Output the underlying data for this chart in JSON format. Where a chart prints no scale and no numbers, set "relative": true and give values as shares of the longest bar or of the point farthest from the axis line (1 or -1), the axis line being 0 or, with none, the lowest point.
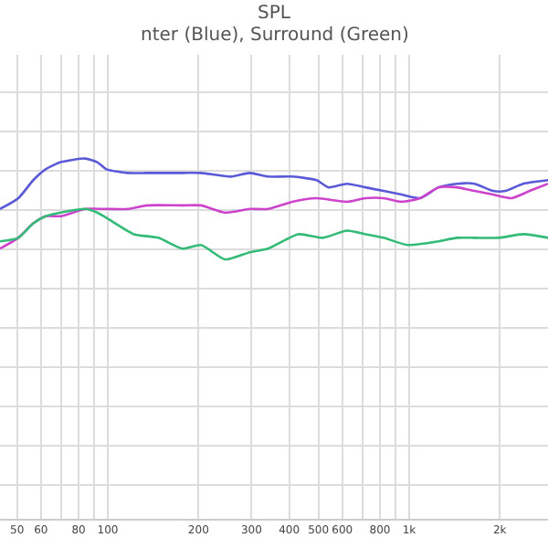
{
  "chart_data": {
    "type": "line",
    "title": "SPL",
    "subtitle": "nter (Blue), Surround (Green)",
    "relative": true,
    "log": "x",
    "grid": true,
    "marker": "none",
    "line_style": "solid",
    "xlim": [
      43.9,
      2890
    ],
    "xticks": [
      50,
      60,
      {
        "value": 70,
        "label": null
      },
      80,
      {
        "value": 90,
        "label": null
      },
      100,
      200,
      300,
      400,
      500,
      600,
      {
        "value": 700,
        "label": null
      },
      800,
      {
        "value": 900,
        "label": null
      },
      {
        "value": 1000,
        "label": "1k"
      },
      {
        "value": 2000,
        "label": "2k"
      }
    ],
    "series": [
      {
        "color": "#5a5ad8",
        "x": [
          43.9,
          50.5,
          56.6,
          62.2,
          69.8,
          84.2,
          92.3,
          99,
          116.5,
          135,
          177,
          204,
          257,
          296,
          340,
          409,
          493,
          541,
          622,
          716,
          823,
          945,
          1087,
          1252,
          1440,
          1650,
          1900,
          2085,
          2390,
          2890
        ],
        "values": [
          0.86,
          0.89,
          0.94,
          0.97,
          0.99,
          1,
          0.99,
          0.97,
          0.96,
          0.96,
          0.96,
          0.96,
          0.95,
          0.96,
          0.95,
          0.95,
          0.94,
          0.92,
          0.93,
          0.92,
          0.91,
          0.9,
          0.89,
          0.92,
          0.93,
          0.93,
          0.91,
          0.91,
          0.93,
          0.94
        ]
      },
      {
        "color": "#cc44cc",
        "x": [
          43.9,
          50.5,
          56.6,
          62.2,
          69.8,
          84.2,
          99,
          116.5,
          135,
          177,
          204,
          245,
          296,
          340,
          409,
          493,
          622,
          716,
          823,
          945,
          1087,
          1252,
          1440,
          1650,
          1900,
          2185,
          2512,
          2890
        ],
        "values": [
          0.75,
          0.78,
          0.82,
          0.84,
          0.84,
          0.86,
          0.86,
          0.86,
          0.87,
          0.87,
          0.87,
          0.85,
          0.86,
          0.86,
          0.88,
          0.89,
          0.88,
          0.89,
          0.89,
          0.88,
          0.89,
          0.92,
          0.92,
          0.91,
          0.9,
          0.89,
          0.91,
          0.93
        ]
      },
      {
        "color": "#33bb77",
        "x": [
          43.9,
          50.5,
          56.6,
          62.2,
          69.8,
          84.2,
          92.3,
          101.4,
          122,
          147,
          177,
          204,
          245,
          296,
          340,
          429,
          517,
          622,
          716,
          823,
          990,
          1252,
          1440,
          1650,
          1987,
          2390,
          2890
        ],
        "values": [
          0.77,
          0.78,
          0.82,
          0.84,
          0.85,
          0.86,
          0.85,
          0.83,
          0.79,
          0.78,
          0.75,
          0.76,
          0.72,
          0.74,
          0.75,
          0.79,
          0.78,
          0.8,
          0.79,
          0.78,
          0.76,
          0.77,
          0.78,
          0.78,
          0.78,
          0.79,
          0.78
        ]
      }
    ]
  }
}
